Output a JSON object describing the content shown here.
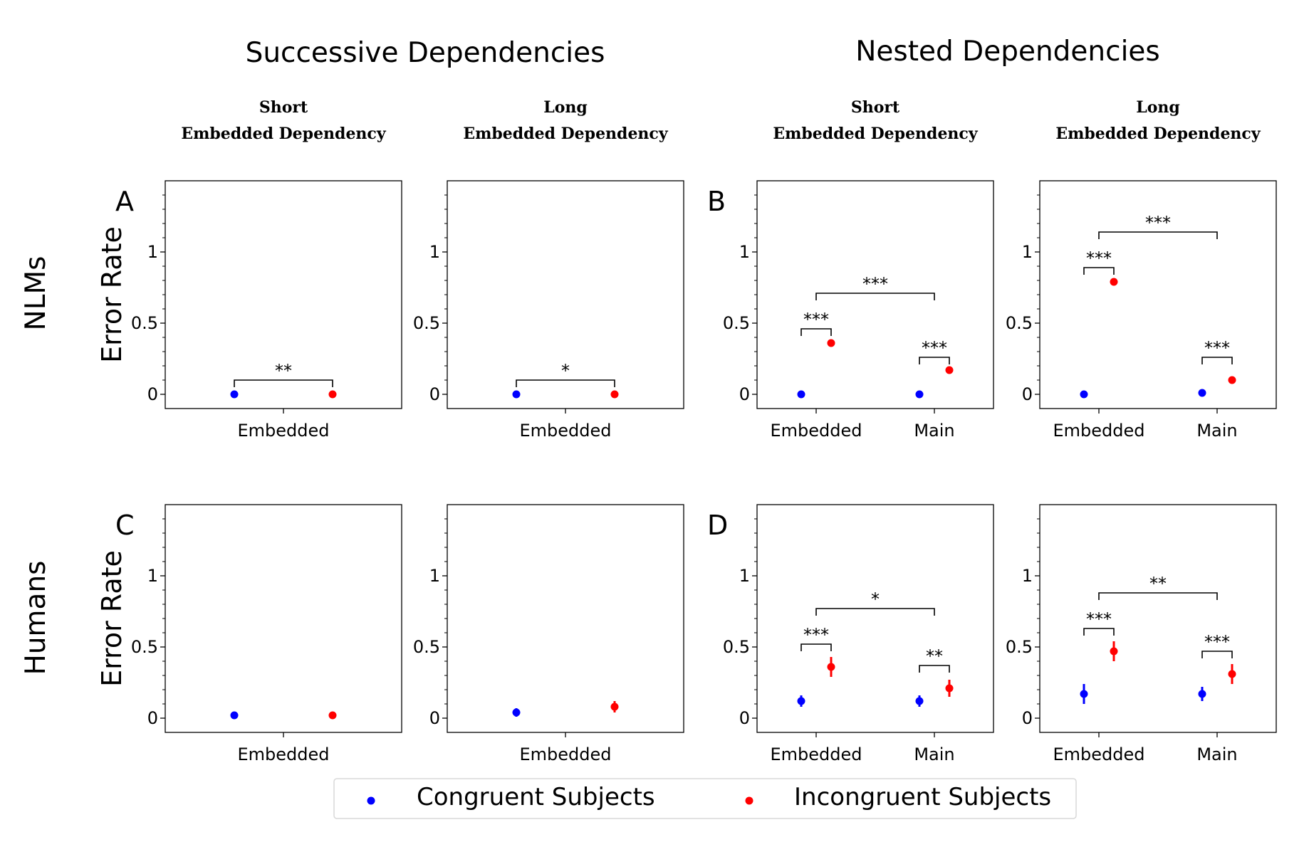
{
  "figure": {
    "group_titles": [
      "Successive Dependencies",
      "Nested Dependencies"
    ],
    "row_titles": [
      "NLMs",
      "Humans"
    ],
    "ylabel": "Error Rate",
    "panel_letters": [
      "A",
      "B",
      "C",
      "D"
    ],
    "legend": {
      "entries": [
        {
          "label": "Congruent Subjects",
          "color": "#0000ff"
        },
        {
          "label": "Incongruent Subjects",
          "color": "#ff0000"
        }
      ]
    },
    "colors": {
      "congruent": "#0000ff",
      "incongruent": "#ff0000"
    }
  },
  "chart_data": [
    {
      "type": "scatter",
      "row": "NLMs",
      "group": "Successive Dependencies",
      "title_lines": [
        "Short",
        "Embedded Dependency"
      ],
      "letter": "A",
      "categories": [
        "Embedded"
      ],
      "ylabel": "Error Rate",
      "ylim": [
        -0.1,
        1.5
      ],
      "yticks": [
        0,
        0.5,
        1
      ],
      "ytick_labels": [
        "0",
        "0.5",
        "1"
      ],
      "series": [
        {
          "name": "Congruent Subjects",
          "color": "#0000ff",
          "values": [
            0.0
          ],
          "err": [
            0
          ]
        },
        {
          "name": "Incongruent Subjects",
          "color": "#ff0000",
          "values": [
            0.0
          ],
          "err": [
            0
          ]
        }
      ],
      "brackets": [
        {
          "between": "pair",
          "category": 0,
          "label": "**",
          "y": 0.1
        }
      ]
    },
    {
      "type": "scatter",
      "row": "NLMs",
      "group": "Successive Dependencies",
      "title_lines": [
        "Long",
        "Embedded Dependency"
      ],
      "categories": [
        "Embedded"
      ],
      "ylim": [
        -0.1,
        1.5
      ],
      "yticks": [
        0,
        0.5,
        1
      ],
      "ytick_labels": [
        "0",
        "0.5",
        "1"
      ],
      "series": [
        {
          "name": "Congruent Subjects",
          "color": "#0000ff",
          "values": [
            0.0
          ],
          "err": [
            0
          ]
        },
        {
          "name": "Incongruent Subjects",
          "color": "#ff0000",
          "values": [
            0.0
          ],
          "err": [
            0
          ]
        }
      ],
      "brackets": [
        {
          "between": "pair",
          "category": 0,
          "label": "*",
          "y": 0.1
        }
      ]
    },
    {
      "type": "scatter",
      "row": "NLMs",
      "group": "Nested Dependencies",
      "title_lines": [
        "Short",
        "Embedded Dependency"
      ],
      "letter": "B",
      "categories": [
        "Embedded",
        "Main"
      ],
      "ylim": [
        -0.1,
        1.5
      ],
      "yticks": [
        0,
        0.5,
        1
      ],
      "ytick_labels": [
        "0",
        "0.5",
        "1"
      ],
      "series": [
        {
          "name": "Congruent Subjects",
          "color": "#0000ff",
          "values": [
            0.0,
            0.0
          ],
          "err": [
            0,
            0
          ]
        },
        {
          "name": "Incongruent Subjects",
          "color": "#ff0000",
          "values": [
            0.36,
            0.17
          ],
          "err": [
            0,
            0
          ]
        }
      ],
      "brackets": [
        {
          "between": "pair",
          "category": 0,
          "label": "***",
          "y": 0.46
        },
        {
          "between": "pair",
          "category": 1,
          "label": "***",
          "y": 0.26
        },
        {
          "between": "categories",
          "label": "***",
          "y": 0.71
        }
      ]
    },
    {
      "type": "scatter",
      "row": "NLMs",
      "group": "Nested Dependencies",
      "title_lines": [
        "Long",
        "Embedded Dependency"
      ],
      "categories": [
        "Embedded",
        "Main"
      ],
      "ylim": [
        -0.1,
        1.5
      ],
      "yticks": [
        0,
        0.5,
        1
      ],
      "ytick_labels": [
        "0",
        "0.5",
        "1"
      ],
      "series": [
        {
          "name": "Congruent Subjects",
          "color": "#0000ff",
          "values": [
            0.0,
            0.01
          ],
          "err": [
            0,
            0
          ]
        },
        {
          "name": "Incongruent Subjects",
          "color": "#ff0000",
          "values": [
            0.79,
            0.1
          ],
          "err": [
            0,
            0
          ]
        }
      ],
      "brackets": [
        {
          "between": "pair",
          "category": 0,
          "label": "***",
          "y": 0.89
        },
        {
          "between": "pair",
          "category": 1,
          "label": "***",
          "y": 0.26
        },
        {
          "between": "categories",
          "label": "***",
          "y": 1.14
        }
      ]
    },
    {
      "type": "scatter",
      "row": "Humans",
      "group": "Successive Dependencies",
      "letter": "C",
      "categories": [
        "Embedded"
      ],
      "ylabel": "Error Rate",
      "ylim": [
        -0.1,
        1.5
      ],
      "yticks": [
        0,
        0.5,
        1
      ],
      "ytick_labels": [
        "0",
        "0.5",
        "1"
      ],
      "series": [
        {
          "name": "Congruent Subjects",
          "color": "#0000ff",
          "values": [
            0.02
          ],
          "err": [
            0.01
          ]
        },
        {
          "name": "Incongruent Subjects",
          "color": "#ff0000",
          "values": [
            0.02
          ],
          "err": [
            0.01
          ]
        }
      ],
      "brackets": []
    },
    {
      "type": "scatter",
      "row": "Humans",
      "group": "Successive Dependencies",
      "categories": [
        "Embedded"
      ],
      "ylim": [
        -0.1,
        1.5
      ],
      "yticks": [
        0,
        0.5,
        1
      ],
      "ytick_labels": [
        "0",
        "0.5",
        "1"
      ],
      "series": [
        {
          "name": "Congruent Subjects",
          "color": "#0000ff",
          "values": [
            0.04
          ],
          "err": [
            0.03
          ]
        },
        {
          "name": "Incongruent Subjects",
          "color": "#ff0000",
          "values": [
            0.08
          ],
          "err": [
            0.04
          ]
        }
      ],
      "brackets": []
    },
    {
      "type": "scatter",
      "row": "Humans",
      "group": "Nested Dependencies",
      "letter": "D",
      "categories": [
        "Embedded",
        "Main"
      ],
      "ylim": [
        -0.1,
        1.5
      ],
      "yticks": [
        0,
        0.5,
        1
      ],
      "ytick_labels": [
        "0",
        "0.5",
        "1"
      ],
      "series": [
        {
          "name": "Congruent Subjects",
          "color": "#0000ff",
          "values": [
            0.12,
            0.12
          ],
          "err": [
            0.04,
            0.04
          ]
        },
        {
          "name": "Incongruent Subjects",
          "color": "#ff0000",
          "values": [
            0.36,
            0.21
          ],
          "err": [
            0.07,
            0.06
          ]
        }
      ],
      "brackets": [
        {
          "between": "pair",
          "category": 0,
          "label": "***",
          "y": 0.52
        },
        {
          "between": "pair",
          "category": 1,
          "label": "**",
          "y": 0.37
        },
        {
          "between": "categories",
          "label": "*",
          "y": 0.77
        }
      ]
    },
    {
      "type": "scatter",
      "row": "Humans",
      "group": "Nested Dependencies",
      "categories": [
        "Embedded",
        "Main"
      ],
      "ylim": [
        -0.1,
        1.5
      ],
      "yticks": [
        0,
        0.5,
        1
      ],
      "ytick_labels": [
        "0",
        "0.5",
        "1"
      ],
      "series": [
        {
          "name": "Congruent Subjects",
          "color": "#0000ff",
          "values": [
            0.17,
            0.17
          ],
          "err": [
            0.07,
            0.05
          ]
        },
        {
          "name": "Incongruent Subjects",
          "color": "#ff0000",
          "values": [
            0.47,
            0.31
          ],
          "err": [
            0.07,
            0.07
          ]
        }
      ],
      "brackets": [
        {
          "between": "pair",
          "category": 0,
          "label": "***",
          "y": 0.63
        },
        {
          "between": "pair",
          "category": 1,
          "label": "***",
          "y": 0.47
        },
        {
          "between": "categories",
          "label": "**",
          "y": 0.88
        }
      ]
    }
  ]
}
